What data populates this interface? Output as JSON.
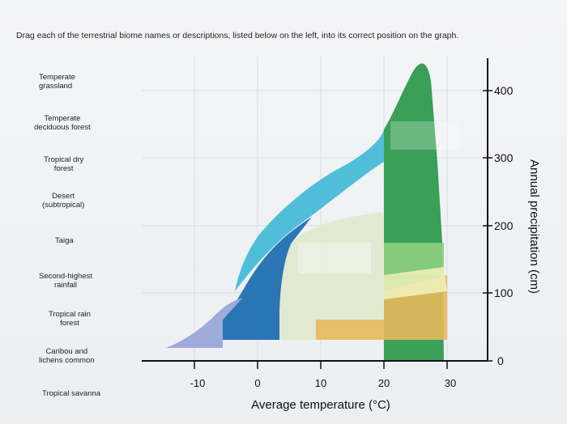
{
  "instructions": "Drag each of the terrestrial biome names or descriptions, listed below on the left, into its correct position on the graph.",
  "labels": [
    {
      "line1": "Temperate",
      "line2": "grassland"
    },
    {
      "line1": "Temperate",
      "line2": "deciduous forest"
    },
    {
      "line1": "Tropical dry",
      "line2": "forest"
    },
    {
      "line1": "Desert",
      "line2": "(subtropical)"
    },
    {
      "line1": "Taiga",
      "line2": ""
    },
    {
      "line1": "Second-highest",
      "line2": "rainfall"
    },
    {
      "line1": "Tropical rain",
      "line2": "forest"
    },
    {
      "line1": "Caribou and",
      "line2": "lichens common"
    },
    {
      "line1": "Tropical savanna",
      "line2": ""
    }
  ],
  "chart_data": {
    "type": "area",
    "xlabel": "Average temperature (°C)",
    "ylabel": "Annual precipitation (cm)",
    "x_ticks": [
      "-10",
      "0",
      "10",
      "20",
      "30"
    ],
    "y_ticks": [
      "0",
      "100",
      "200",
      "300",
      "400"
    ],
    "xlim": [
      -15,
      33
    ],
    "ylim": [
      0,
      450
    ]
  },
  "colors": {
    "tundra": "#9aa6d8",
    "taiga": "#1f6fb1",
    "temperate_forest": "#3fb8d6",
    "grassland": "#d9e6c9",
    "desert": "#e8b85c",
    "savanna": "#eef0b8",
    "tropical_forest": "#2f9a4e",
    "dry_forest": "#7ec47f"
  }
}
